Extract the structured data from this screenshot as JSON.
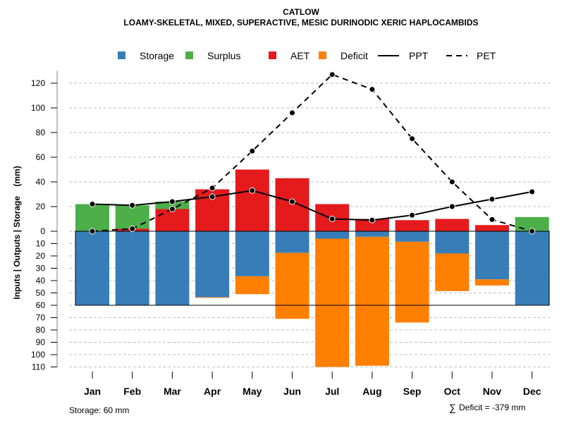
{
  "chart_data": {
    "type": "bar",
    "title": "CATLOW",
    "subtitle": "LOAMY-SKELETAL, MIXED, SUPERACTIVE, MESIC DURINODIC XERIC HAPLOCAMBIDS",
    "ylabel": "Inputs | Outputs | Storage    (mm)",
    "xlabel": "",
    "categories": [
      "Jan",
      "Feb",
      "Mar",
      "Apr",
      "May",
      "Jun",
      "Jul",
      "Aug",
      "Sep",
      "Oct",
      "Nov",
      "Dec"
    ],
    "upper_ticks": [
      0,
      20,
      40,
      60,
      80,
      100,
      120
    ],
    "lower_ticks": [
      10,
      20,
      30,
      40,
      50,
      60,
      70,
      80,
      90,
      100,
      110
    ],
    "ylim_upper": [
      0,
      130
    ],
    "ylim_lower": [
      0,
      110
    ],
    "grid": true,
    "legend_position": "top",
    "legend": [
      {
        "name": "Storage",
        "kind": "box",
        "color": "#377EB8"
      },
      {
        "name": "Surplus",
        "kind": "box",
        "color": "#4DAF4A"
      },
      {
        "name": "AET",
        "kind": "box",
        "color": "#E41A1C"
      },
      {
        "name": "Deficit",
        "kind": "box",
        "color": "#FF7F00"
      },
      {
        "name": "PPT",
        "kind": "solid-line",
        "color": "#000000"
      },
      {
        "name": "PET",
        "kind": "dashed-line",
        "color": "#000000"
      }
    ],
    "series": [
      {
        "name": "AET",
        "color": "#E41A1C",
        "direction": "up",
        "values": [
          0,
          2,
          18,
          34,
          50,
          43,
          22,
          10,
          9,
          10,
          5,
          0
        ]
      },
      {
        "name": "Surplus",
        "color": "#4DAF4A",
        "direction": "up",
        "values": [
          22,
          19,
          6,
          0,
          0,
          0,
          0,
          0,
          0,
          0,
          0,
          11.5
        ]
      },
      {
        "name": "Storage",
        "color": "#377EB8",
        "direction": "down",
        "values": [
          60,
          60,
          60,
          53.5,
          36.5,
          17.5,
          6,
          4.5,
          8.5,
          18,
          39,
          60
        ]
      },
      {
        "name": "Deficit",
        "color": "#FF7F00",
        "direction": "down",
        "values": [
          0,
          0,
          0,
          0.5,
          14.5,
          53.5,
          104,
          104.5,
          65.5,
          30.5,
          5,
          0
        ]
      },
      {
        "name": "PPT",
        "color": "#000000",
        "style": "solid",
        "values": [
          22,
          21,
          24,
          28,
          33,
          24,
          10,
          9,
          13,
          20,
          26,
          32
        ]
      },
      {
        "name": "PET",
        "color": "#000000",
        "style": "dashed",
        "values": [
          0,
          2,
          18,
          35,
          65,
          96,
          127,
          115,
          75,
          40,
          9.5,
          0
        ]
      }
    ],
    "storage_capacity": 60,
    "annotations": {
      "storage": "Storage: 60 mm",
      "deficit_sum": "Deficit = -379 mm",
      "sum_symbol": "∑"
    }
  }
}
